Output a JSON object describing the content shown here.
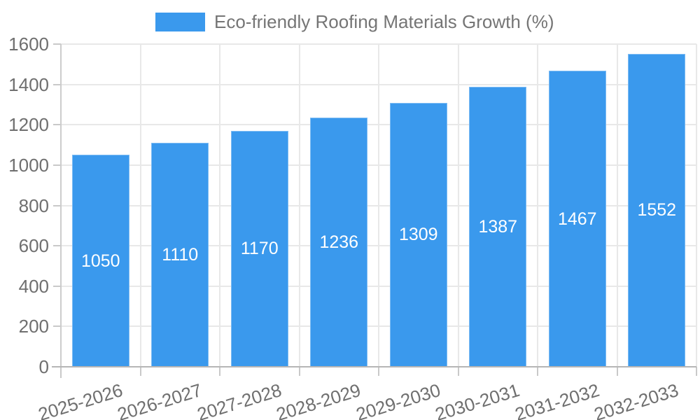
{
  "chart_data": {
    "type": "bar",
    "title": "Eco-friendly Roofing Materials Growth (%)",
    "categories": [
      "2025-2026",
      "2026-2027",
      "2027-2028",
      "2028-2029",
      "2029-2030",
      "2030-2031",
      "2031-2032",
      "2032-2033"
    ],
    "values": [
      1050,
      1110,
      1170,
      1236,
      1309,
      1387,
      1467,
      1552
    ],
    "series": [
      {
        "name": "Eco-friendly Roofing Materials Growth (%)",
        "values": [
          1050,
          1110,
          1170,
          1236,
          1309,
          1387,
          1467,
          1552
        ]
      }
    ],
    "xlabel": "",
    "ylabel": "",
    "ylim": [
      0,
      1600
    ],
    "yticks": [
      0,
      200,
      400,
      600,
      800,
      1000,
      1200,
      1400,
      1600
    ],
    "grid": true,
    "legend_position": "top",
    "bar_color": "#3a99ed",
    "value_label_color": "#ffffff",
    "axis_text_color": "#6f6f6f",
    "legend_text_color": "#757575",
    "gridline_color": "#e8e8e8",
    "baseline_color": "#b6b6b6",
    "tick_color": "#c9c9c9"
  }
}
